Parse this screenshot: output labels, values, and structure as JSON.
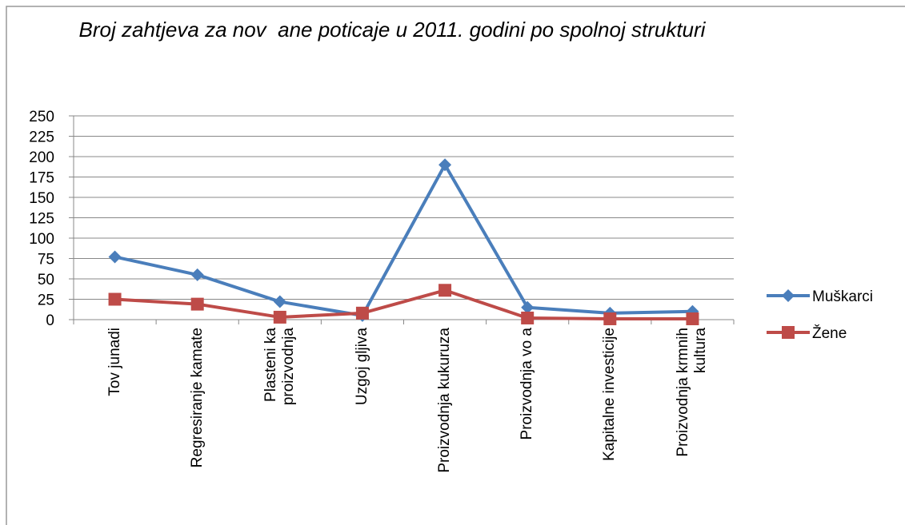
{
  "chart_data": {
    "type": "line",
    "title": "Broj zahtjeva za nov  ane poticaje u 2011. godini po spolnoj strukturi",
    "categories": [
      "Tov junadi",
      "Regresiranje kamate",
      "Plasteni  ka proizvodnja",
      "Uzgoj gljiva",
      "Proizvodnja kukuruza",
      "Proizvodnja vo  a",
      "Kapitalne investicije",
      "Proizvodnja krmnih kultura"
    ],
    "series": [
      {
        "name": "Muškarci",
        "color": "#4a7ebb",
        "marker": "diamond",
        "values": [
          77,
          55,
          22,
          5,
          190,
          15,
          8,
          10
        ]
      },
      {
        "name": "Žene",
        "color": "#be4b48",
        "marker": "square",
        "values": [
          25,
          19,
          3,
          8,
          36,
          2,
          1,
          1
        ]
      }
    ],
    "ylim": [
      0,
      250
    ],
    "yticks": [
      0,
      25,
      50,
      75,
      100,
      125,
      150,
      175,
      200,
      225,
      250
    ],
    "grid": true,
    "legend": "right"
  }
}
